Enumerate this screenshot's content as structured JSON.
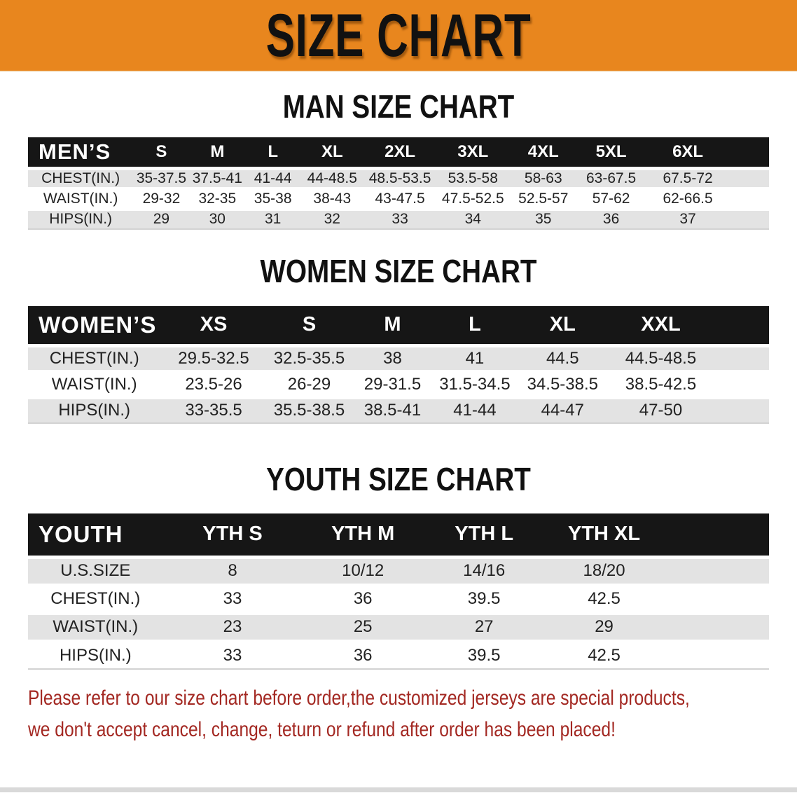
{
  "theme": {
    "banner_bg": "#E8861E",
    "band_bg": "#161616",
    "band_text_color": "#FFFFFF",
    "row_alt_bg": "#E3E3E3",
    "heading_color": "#111111",
    "value_text_color": "#222222",
    "disclaimer_color": "#A32822"
  },
  "banner": {
    "title": "SIZE CHART"
  },
  "sections": {
    "men": {
      "heading": "MAN SIZE CHART",
      "table": {
        "header_label": "MEN’S",
        "columns": [
          "S",
          "M",
          "L",
          "XL",
          "2XL",
          "3XL",
          "4XL",
          "5XL",
          "6XL"
        ],
        "rows": [
          {
            "label": "CHEST(IN.)",
            "values": [
              "35-37.5",
              "37.5-41",
              "41-44",
              "44-48.5",
              "48.5-53.5",
              "53.5-58",
              "58-63",
              "63-67.5",
              "67.5-72"
            ]
          },
          {
            "label": "WAIST(IN.)",
            "values": [
              "29-32",
              "32-35",
              "35-38",
              "38-43",
              "43-47.5",
              "47.5-52.5",
              "52.5-57",
              "57-62",
              "62-66.5"
            ]
          },
          {
            "label": "HIPS(IN.)",
            "values": [
              "29",
              "30",
              "31",
              "32",
              "33",
              "34",
              "35",
              "36",
              "37"
            ]
          }
        ]
      }
    },
    "women": {
      "heading": "WOMEN SIZE CHART",
      "table": {
        "header_label": "WOMEN’S",
        "columns": [
          "XS",
          "S",
          "M",
          "L",
          "XL",
          "XXL"
        ],
        "rows": [
          {
            "label": "CHEST(IN.)",
            "values": [
              "29.5-32.5",
              "32.5-35.5",
              "38",
              "41",
              "44.5",
              "44.5-48.5"
            ]
          },
          {
            "label": "WAIST(IN.)",
            "values": [
              "23.5-26",
              "26-29",
              "29-31.5",
              "31.5-34.5",
              "34.5-38.5",
              "38.5-42.5"
            ]
          },
          {
            "label": "HIPS(IN.)",
            "values": [
              "33-35.5",
              "35.5-38.5",
              "38.5-41",
              "41-44",
              "44-47",
              "47-50"
            ]
          }
        ]
      }
    },
    "youth": {
      "heading": "YOUTH SIZE CHART",
      "table": {
        "header_label": "YOUTH",
        "columns": [
          "YTH S",
          "YTH M",
          "YTH L",
          "YTH XL"
        ],
        "rows": [
          {
            "label": "U.S.SIZE",
            "values": [
              "8",
              "10/12",
              "14/16",
              "18/20"
            ]
          },
          {
            "label": "CHEST(IN.)",
            "values": [
              "33",
              "36",
              "39.5",
              "42.5"
            ]
          },
          {
            "label": "WAIST(IN.)",
            "values": [
              "23",
              "25",
              "27",
              "29"
            ]
          },
          {
            "label": "HIPS(IN.)",
            "values": [
              "33",
              "36",
              "39.5",
              "42.5"
            ]
          }
        ]
      }
    }
  },
  "disclaimer": {
    "line1": "Please refer to our size chart before order,the customized jerseys are special products,",
    "line2": "we don't accept cancel, change, teturn or refund after order has been placed!"
  }
}
